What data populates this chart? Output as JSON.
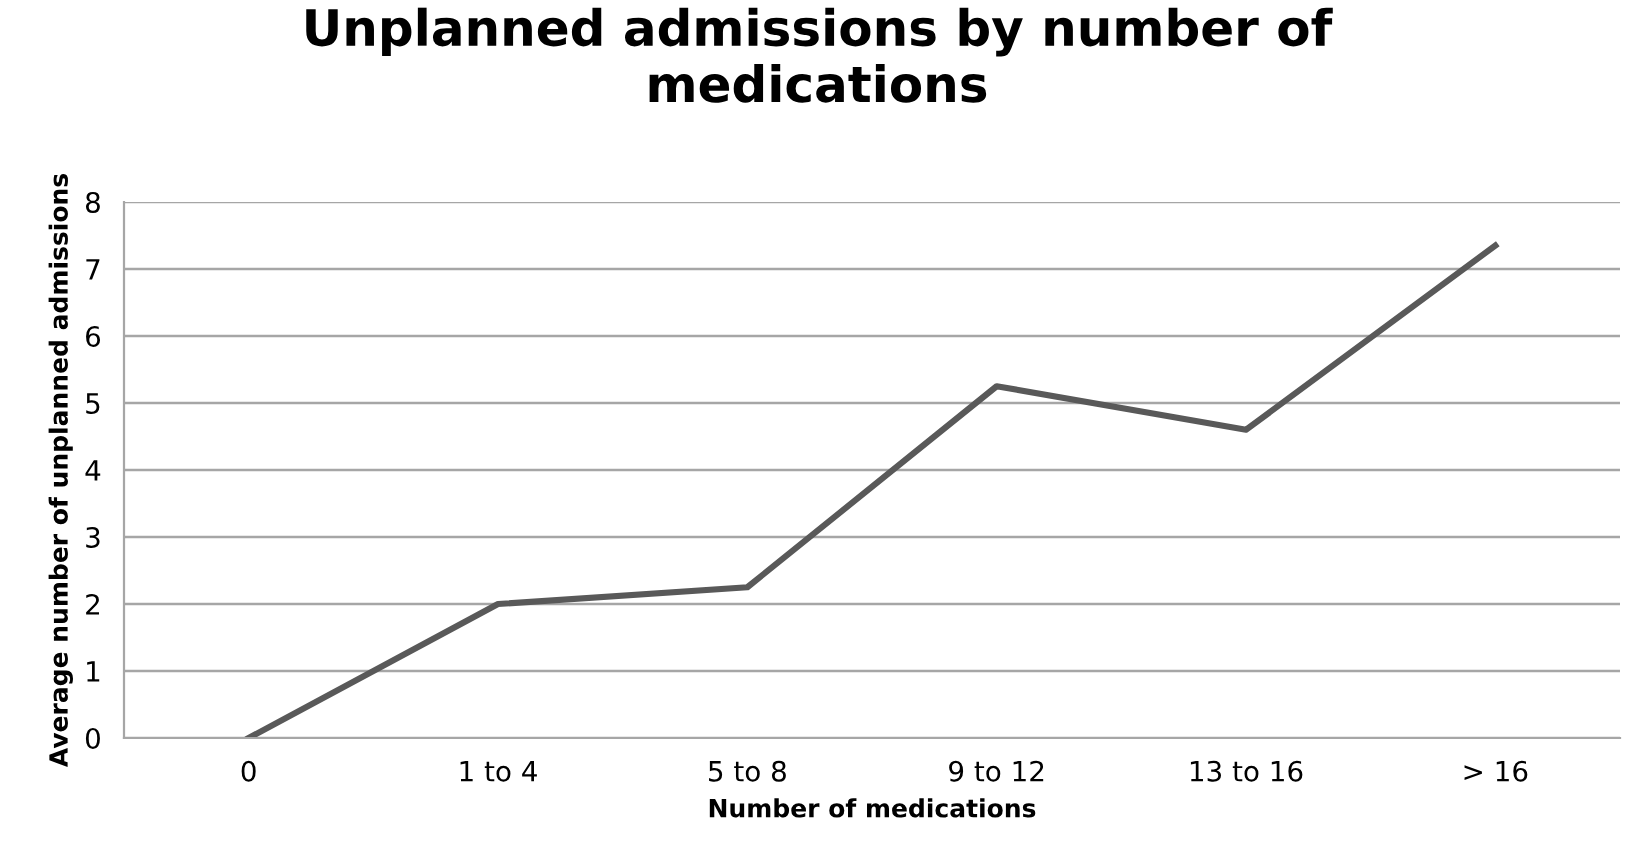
{
  "chart_data": {
    "type": "line",
    "title": "Unplanned admissions by number of medications",
    "xlabel": "Number of medications",
    "ylabel": "Average number of unplanned admissions",
    "categories": [
      "0",
      "1 to 4",
      "5 to 8",
      "9 to 12",
      "13 to 16",
      "> 16"
    ],
    "series": [
      {
        "color": "#595959",
        "values": [
          0,
          2.0,
          2.25,
          5.25,
          4.6,
          7.35
        ]
      }
    ],
    "ylim": [
      0,
      8
    ],
    "yticks": [
      0,
      1,
      2,
      3,
      4,
      5,
      6,
      7,
      8
    ],
    "grid": "y",
    "marker": "none",
    "line_style": "solid"
  }
}
